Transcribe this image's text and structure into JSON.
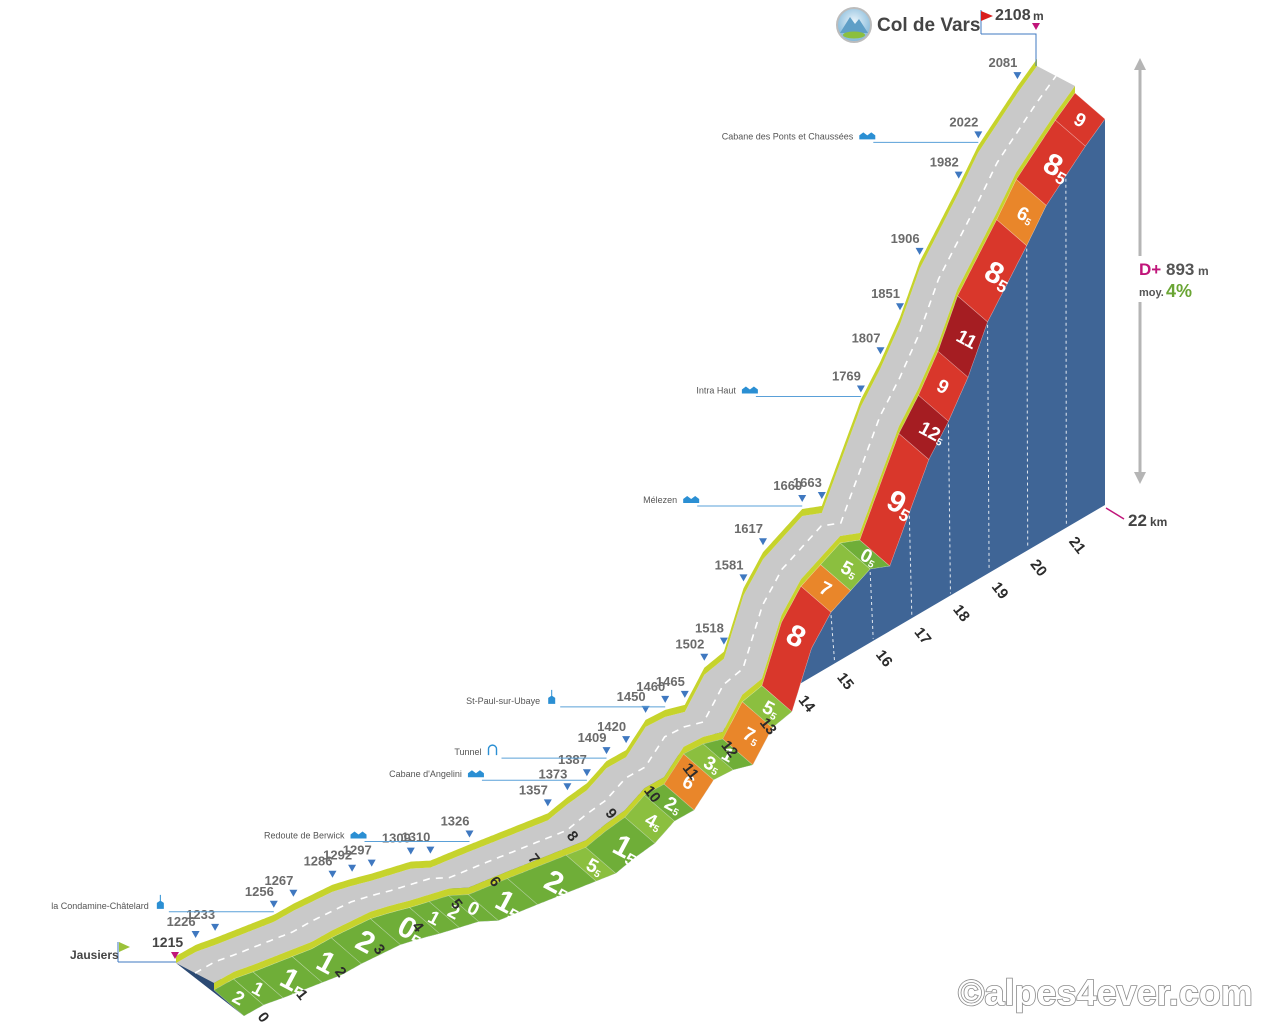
{
  "title": "Col de Vars",
  "summit_elevation": "2108",
  "summit_unit": "m",
  "start_name": "Jausiers",
  "start_elevation": "1215",
  "total_distance": "22",
  "distance_unit": "km",
  "gain_label": "D+",
  "gain_value": "893",
  "gain_unit": "m",
  "avg_label": "moy.",
  "avg_value": "4%",
  "credit": "©alpes4ever.com",
  "colors": {
    "very_easy": "#6fae38",
    "easy": "#8bbf3f",
    "medium": "#e9862a",
    "hard": "#d9372b",
    "very_hard": "#a51d22",
    "base": "#3f6596",
    "road": "#c9c9c9",
    "road_edge": "#c6d32c",
    "marker": "#3f78c0",
    "summit_flag": "#d81e1e",
    "start_flag": "#9cc23a",
    "gain": "#c0157a",
    "avg": "#6aa534"
  },
  "chart_data": {
    "type": "area",
    "title": "Col de Vars",
    "x_unit": "km",
    "km_ticks": [
      0,
      1,
      2,
      3,
      4,
      5,
      6,
      7,
      8,
      9,
      10,
      11,
      12,
      13,
      14,
      15,
      16,
      17,
      18,
      19,
      20,
      21
    ],
    "elevation_profile": [
      {
        "km": 0.0,
        "elev": 1215
      },
      {
        "km": 0.5,
        "elev": 1226
      },
      {
        "km": 1.0,
        "elev": 1233
      },
      {
        "km": 2.5,
        "elev": 1256
      },
      {
        "km": 3.0,
        "elev": 1267
      },
      {
        "km": 4.0,
        "elev": 1286
      },
      {
        "km": 4.5,
        "elev": 1292
      },
      {
        "km": 5.0,
        "elev": 1297
      },
      {
        "km": 6.0,
        "elev": 1309
      },
      {
        "km": 6.5,
        "elev": 1310
      },
      {
        "km": 7.5,
        "elev": 1326
      },
      {
        "km": 9.5,
        "elev": 1357
      },
      {
        "km": 10.0,
        "elev": 1373
      },
      {
        "km": 10.5,
        "elev": 1387
      },
      {
        "km": 11.0,
        "elev": 1409
      },
      {
        "km": 11.5,
        "elev": 1420
      },
      {
        "km": 12.0,
        "elev": 1450
      },
      {
        "km": 12.5,
        "elev": 1460
      },
      {
        "km": 13.0,
        "elev": 1465
      },
      {
        "km": 13.5,
        "elev": 1502
      },
      {
        "km": 14.0,
        "elev": 1518
      },
      {
        "km": 14.5,
        "elev": 1581
      },
      {
        "km": 15.0,
        "elev": 1617
      },
      {
        "km": 16.0,
        "elev": 1660
      },
      {
        "km": 16.5,
        "elev": 1663
      },
      {
        "km": 17.5,
        "elev": 1769
      },
      {
        "km": 18.0,
        "elev": 1807
      },
      {
        "km": 18.5,
        "elev": 1851
      },
      {
        "km": 19.0,
        "elev": 1906
      },
      {
        "km": 20.0,
        "elev": 1982
      },
      {
        "km": 20.5,
        "elev": 2022
      },
      {
        "km": 21.5,
        "elev": 2081
      },
      {
        "km": 22.0,
        "elev": 2108
      }
    ],
    "gradient_segments": [
      {
        "from": 0,
        "to": 0.5,
        "grade": "2"
      },
      {
        "from": 0.5,
        "to": 1,
        "grade": "1"
      },
      {
        "from": 1,
        "to": 2,
        "grade": "1,5"
      },
      {
        "from": 2,
        "to": 3,
        "grade": "1"
      },
      {
        "from": 3,
        "to": 4,
        "grade": "2"
      },
      {
        "from": 4,
        "to": 5,
        "grade": "0,5"
      },
      {
        "from": 5,
        "to": 5.5,
        "grade": "1"
      },
      {
        "from": 5.5,
        "to": 6,
        "grade": "2"
      },
      {
        "from": 6,
        "to": 6.5,
        "grade": "0"
      },
      {
        "from": 6.5,
        "to": 7.5,
        "grade": "1,5"
      },
      {
        "from": 7.5,
        "to": 9,
        "grade": "2,5"
      },
      {
        "from": 9,
        "to": 9.5,
        "grade": "5,5"
      },
      {
        "from": 9.5,
        "to": 10.5,
        "grade": "1,5"
      },
      {
        "from": 10.5,
        "to": 11,
        "grade": "4,5"
      },
      {
        "from": 11,
        "to": 11.5,
        "grade": "2,5"
      },
      {
        "from": 11.5,
        "to": 12,
        "grade": "6"
      },
      {
        "from": 12,
        "to": 12.5,
        "grade": "3,5"
      },
      {
        "from": 12.5,
        "to": 13,
        "grade": "1"
      },
      {
        "from": 13,
        "to": 13.5,
        "grade": "7,5"
      },
      {
        "from": 13.5,
        "to": 14,
        "grade": "5,5"
      },
      {
        "from": 14,
        "to": 15,
        "grade": "8"
      },
      {
        "from": 15,
        "to": 15.5,
        "grade": "7"
      },
      {
        "from": 15.5,
        "to": 16,
        "grade": "5,5"
      },
      {
        "from": 16,
        "to": 16.5,
        "grade": "0,5"
      },
      {
        "from": 16.5,
        "to": 17.5,
        "grade": "9,5"
      },
      {
        "from": 17.5,
        "to": 18,
        "grade": "12,5"
      },
      {
        "from": 18,
        "to": 18.5,
        "grade": "9"
      },
      {
        "from": 18.5,
        "to": 19,
        "grade": "11"
      },
      {
        "from": 19,
        "to": 20,
        "grade": "8,5"
      },
      {
        "from": 20,
        "to": 20.5,
        "grade": "6,5"
      },
      {
        "from": 20.5,
        "to": 21.5,
        "grade": "8,5"
      },
      {
        "from": 21.5,
        "to": 22,
        "grade": "9"
      }
    ],
    "points_of_interest": [
      {
        "km": 2.5,
        "name": "la Condamine-Châtelard",
        "icon": "church-icon"
      },
      {
        "km": 7.5,
        "name": "Redoute de Berwick",
        "icon": "building-icon"
      },
      {
        "km": 10.5,
        "name": "Cabane d'Angelini",
        "icon": "building-icon"
      },
      {
        "km": 11.0,
        "name": "Tunnel",
        "icon": "tunnel-icon"
      },
      {
        "km": 12.5,
        "name": "St-Paul-sur-Ubaye",
        "icon": "church-icon"
      },
      {
        "km": 16.0,
        "name": "Mélezen",
        "icon": "building-icon"
      },
      {
        "km": 17.5,
        "name": "Intra Haut",
        "icon": "building-icon"
      },
      {
        "km": 20.5,
        "name": "Cabane des Ponts et Chaussées",
        "icon": "building-icon"
      }
    ]
  }
}
